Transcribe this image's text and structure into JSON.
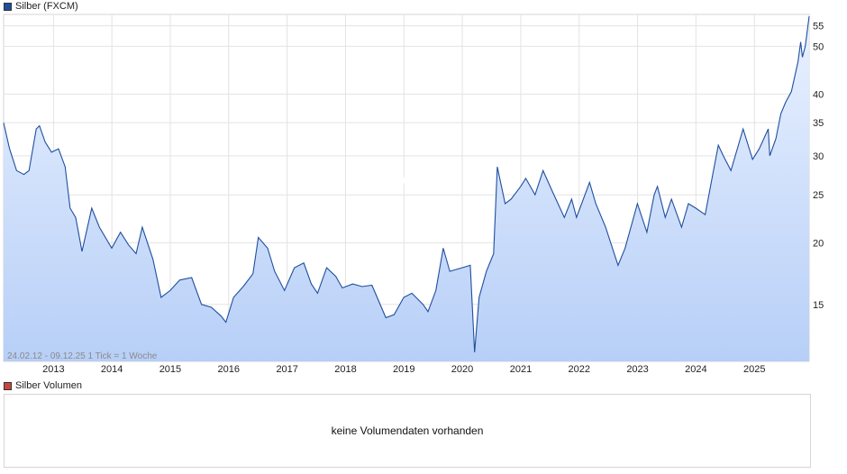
{
  "legend": {
    "price_label": "Silber (FXCM)",
    "price_color": "#1f4e9e",
    "volume_label": "Silber Volumen",
    "volume_color": "#c9463d"
  },
  "watermark": "ARIVA.DE",
  "range_info": "24.02.12 - 09.12.25    1 Tick = 1 Woche",
  "volume": {
    "message": "keine Volumendaten vorhanden"
  },
  "chart_data": {
    "type": "area",
    "title": "Silber (FXCM)",
    "xlabel": "",
    "ylabel": "",
    "y_scale": "log",
    "ylim": [
      11.5,
      58
    ],
    "y_ticks": [
      15,
      20,
      25,
      30,
      35,
      40,
      50,
      55
    ],
    "x_ticks": [
      2013,
      2014,
      2015,
      2016,
      2017,
      2018,
      2019,
      2020,
      2021,
      2022,
      2023,
      2024,
      2025
    ],
    "xlim": [
      "2012-02-24",
      "2025-12-09"
    ],
    "grid": true,
    "line_color": "#1f4e9e",
    "fill_top_color": "#e9f1ff",
    "fill_bottom_color": "#b7cff7",
    "series": [
      {
        "name": "Silber (FXCM)",
        "x": [
          "2012-02-24",
          "2012-04-01",
          "2012-05-15",
          "2012-06-30",
          "2012-08-01",
          "2012-09-15",
          "2012-10-05",
          "2012-11-10",
          "2012-12-20",
          "2013-02-01",
          "2013-03-15",
          "2013-04-15",
          "2013-05-20",
          "2013-06-28",
          "2013-08-28",
          "2013-10-15",
          "2013-12-31",
          "2014-02-24",
          "2014-04-15",
          "2014-06-01",
          "2014-07-10",
          "2014-09-15",
          "2014-11-05",
          "2014-12-31",
          "2015-03-01",
          "2015-05-15",
          "2015-07-15",
          "2015-09-15",
          "2015-11-15",
          "2015-12-15",
          "2016-02-01",
          "2016-04-01",
          "2016-06-01",
          "2016-07-05",
          "2016-09-01",
          "2016-10-15",
          "2016-12-15",
          "2017-02-15",
          "2017-04-15",
          "2017-06-01",
          "2017-07-10",
          "2017-09-05",
          "2017-11-01",
          "2017-12-12",
          "2018-02-15",
          "2018-04-15",
          "2018-06-15",
          "2018-09-10",
          "2018-11-01",
          "2018-12-31",
          "2019-02-20",
          "2019-05-01",
          "2019-06-01",
          "2019-07-20",
          "2019-09-04",
          "2019-10-15",
          "2019-12-31",
          "2020-02-20",
          "2020-03-18",
          "2020-04-15",
          "2020-05-31",
          "2020-07-15",
          "2020-08-07",
          "2020-09-25",
          "2020-11-01",
          "2020-12-31",
          "2021-02-01",
          "2021-03-31",
          "2021-05-20",
          "2021-07-15",
          "2021-09-30",
          "2021-11-15",
          "2021-12-15",
          "2022-03-07",
          "2022-04-15",
          "2022-06-15",
          "2022-09-01",
          "2022-10-15",
          "2022-12-31",
          "2023-02-28",
          "2023-04-15",
          "2023-05-05",
          "2023-06-23",
          "2023-08-01",
          "2023-10-03",
          "2023-11-15",
          "2023-12-31",
          "2024-02-28",
          "2024-04-15",
          "2024-05-20",
          "2024-06-20",
          "2024-08-07",
          "2024-10-22",
          "2024-12-20",
          "2025-01-31",
          "2025-03-28",
          "2025-04-07",
          "2025-05-15",
          "2025-06-15",
          "2025-07-15",
          "2025-08-20",
          "2025-09-30",
          "2025-10-17",
          "2025-10-28",
          "2025-11-15",
          "2025-12-09"
        ],
        "values": [
          35,
          31,
          28,
          27.5,
          28,
          34,
          34.5,
          32,
          30.5,
          31,
          28.5,
          23.5,
          22.5,
          19.2,
          23.5,
          21.5,
          19.5,
          21,
          19.8,
          19,
          21.5,
          18.5,
          15.5,
          16,
          16.8,
          17,
          15,
          14.8,
          14.2,
          13.8,
          15.5,
          16.3,
          17.3,
          20.5,
          19.5,
          17.5,
          16,
          17.8,
          18.2,
          16.5,
          15.8,
          17.8,
          17.1,
          16.2,
          16.5,
          16.3,
          16.4,
          14.1,
          14.3,
          15.5,
          15.8,
          15,
          14.5,
          16,
          19.5,
          17.5,
          17.8,
          18,
          12,
          15.5,
          17.5,
          19,
          28.5,
          24,
          24.5,
          26,
          27,
          25,
          28,
          25.5,
          22.5,
          24.5,
          22.5,
          26.5,
          24,
          21.5,
          18,
          19.5,
          24,
          21,
          25,
          26,
          22.5,
          24.5,
          21.5,
          24,
          23.5,
          22.8,
          27.5,
          31.5,
          30,
          28,
          34,
          29.5,
          31,
          34,
          30,
          32.5,
          36.5,
          38.5,
          40.5,
          46.5,
          51,
          47.5,
          50,
          57.5
        ]
      }
    ]
  }
}
